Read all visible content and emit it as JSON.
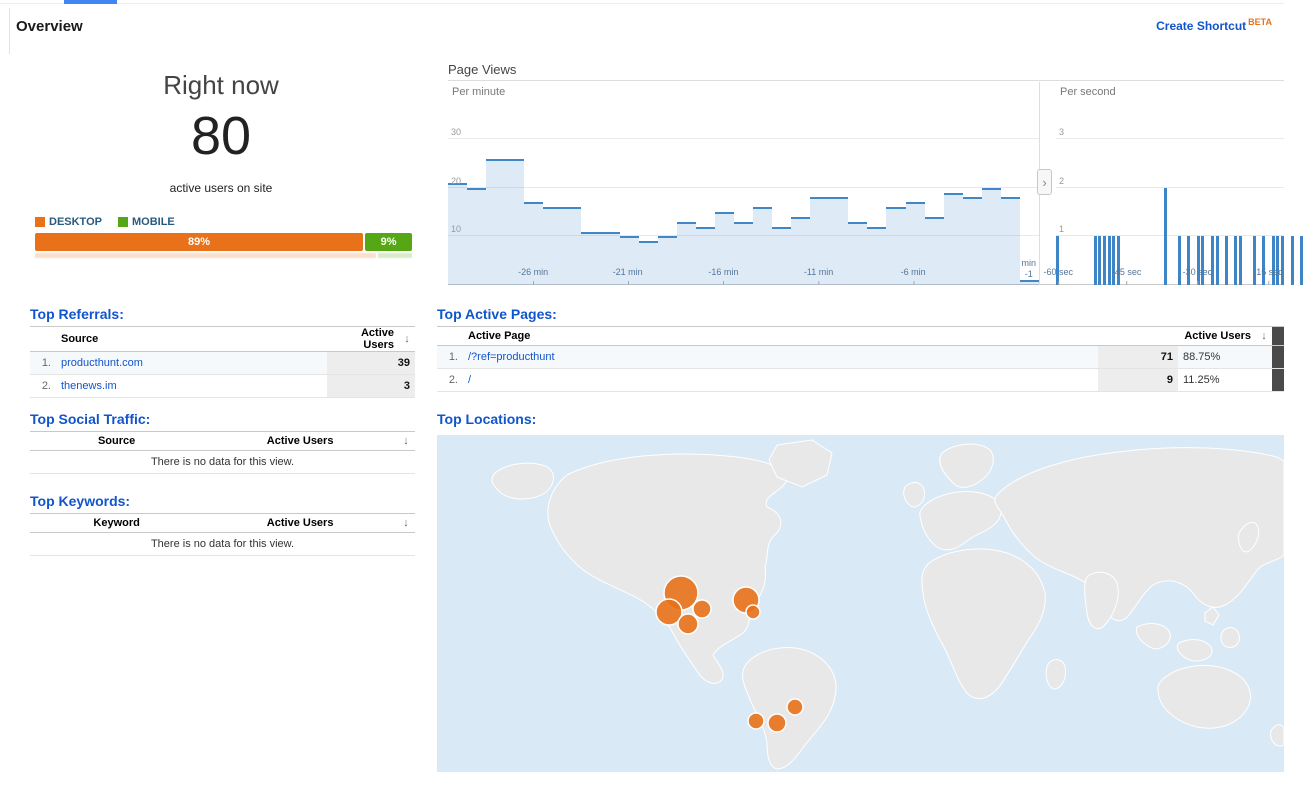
{
  "page": {
    "title": "Overview",
    "create_shortcut_label": "Create Shortcut",
    "beta_label": "BETA"
  },
  "ui": {
    "sort_arrow": "↓",
    "divider_chevron": "›"
  },
  "right_now": {
    "heading": "Right now",
    "active_users": "80",
    "caption": "active users on site",
    "legend": [
      {
        "label": "DESKTOP",
        "color": "#e8711a"
      },
      {
        "label": "MOBILE",
        "color": "#55a716"
      }
    ],
    "device_split": [
      {
        "label": "89%",
        "value": 89,
        "color": "#e8711a"
      },
      {
        "label": "9%",
        "value": 9,
        "color": "#55a716"
      }
    ]
  },
  "page_views": {
    "title": "Page Views",
    "per_minute": {
      "label": "Per minute",
      "type": "bar",
      "y_ticks": [
        "10",
        "20",
        "30"
      ],
      "y_max": 30,
      "x_ticks": [
        {
          "label": "-26 min",
          "pct": 14.4
        },
        {
          "label": "-21 min",
          "pct": 30.4
        },
        {
          "label": "-16 min",
          "pct": 46.6
        },
        {
          "label": "-11 min",
          "pct": 62.7
        },
        {
          "label": "-6 min",
          "pct": 78.7
        }
      ],
      "end_label_line1": "min",
      "end_label_line2": "-1",
      "values": [
        21,
        20,
        26,
        26,
        17,
        16,
        16,
        11,
        11,
        10,
        9,
        10,
        13,
        12,
        15,
        13,
        16,
        12,
        14,
        18,
        18,
        13,
        12,
        16,
        17,
        14,
        19,
        18,
        20,
        18,
        1
      ]
    },
    "per_second": {
      "label": "Per second",
      "type": "bar",
      "y_ticks": [
        "1",
        "2",
        "3"
      ],
      "y_max": 3,
      "x_ticks": [
        {
          "label": "-60 sec",
          "pct": 1
        },
        {
          "label": "-45 sec",
          "pct": 31
        },
        {
          "label": "-30 sec",
          "pct": 62
        },
        {
          "label": "-15 sec",
          "pct": 93
        }
      ],
      "values": [
        1,
        0,
        0,
        0,
        0,
        0,
        0,
        0,
        1,
        1,
        1,
        1,
        1,
        1,
        0,
        0,
        0,
        0,
        0,
        0,
        0,
        0,
        0,
        2,
        0,
        0,
        1,
        0,
        1,
        0,
        1,
        1,
        0,
        1,
        1,
        0,
        1,
        0,
        1,
        1,
        0,
        0,
        1,
        0,
        1,
        0,
        1,
        1,
        1,
        0,
        1,
        0,
        1,
        0,
        0,
        0,
        0,
        0,
        0,
        0
      ]
    }
  },
  "tables": {
    "referrals": {
      "heading": "Top Referrals:",
      "columns": [
        "Source",
        "Active Users"
      ],
      "rows": [
        {
          "rank": "1.",
          "source": "producthunt.com",
          "active_users": "39"
        },
        {
          "rank": "2.",
          "source": "thenews.im",
          "active_users": "3"
        }
      ]
    },
    "active_pages": {
      "heading": "Top Active Pages:",
      "columns": [
        "Active Page",
        "Active Users"
      ],
      "rows": [
        {
          "rank": "1.",
          "page": "/?ref=producthunt",
          "active_users": "71",
          "percentage": "88.75%"
        },
        {
          "rank": "2.",
          "page": "/",
          "active_users": "9",
          "percentage": "11.25%"
        }
      ]
    },
    "social": {
      "heading": "Top Social Traffic:",
      "columns": [
        "Source",
        "Active Users"
      ],
      "empty_message": "There is no data for this view."
    },
    "keywords": {
      "heading": "Top Keywords:",
      "columns": [
        "Keyword",
        "Active Users"
      ],
      "empty_message": "There is no data for this view."
    },
    "locations": {
      "heading": "Top Locations:"
    }
  },
  "map": {
    "ocean_color": "#d9e9f6",
    "land_color": "#e8e8e8",
    "marker_color": "#e8711a",
    "markers": [
      {
        "x": 244,
        "y": 158,
        "r": 17
      },
      {
        "x": 232,
        "y": 177,
        "r": 13
      },
      {
        "x": 251,
        "y": 189,
        "r": 10
      },
      {
        "x": 265,
        "y": 174,
        "r": 9
      },
      {
        "x": 309,
        "y": 165,
        "r": 13
      },
      {
        "x": 316,
        "y": 177,
        "r": 7
      },
      {
        "x": 358,
        "y": 272,
        "r": 8
      },
      {
        "x": 340,
        "y": 288,
        "r": 9
      },
      {
        "x": 319,
        "y": 286,
        "r": 8
      }
    ]
  }
}
